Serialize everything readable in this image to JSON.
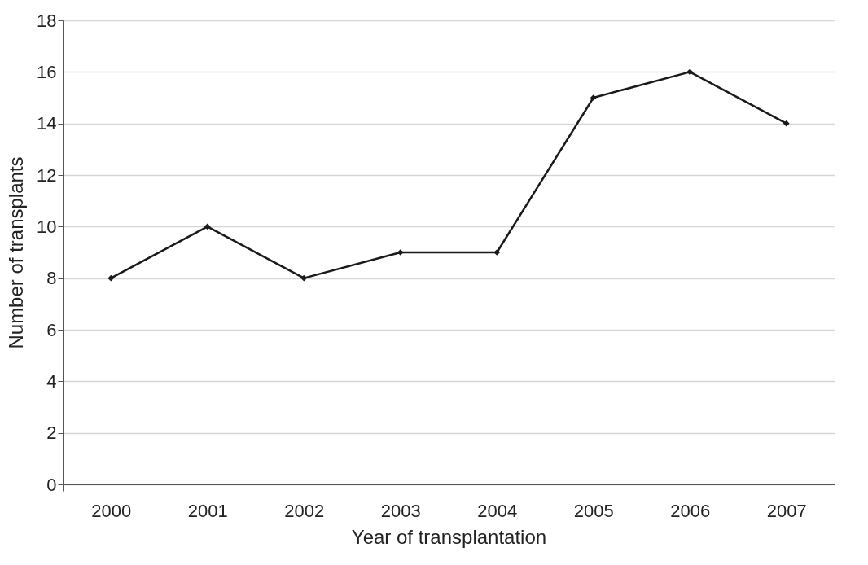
{
  "chart_data": {
    "type": "line",
    "xlabel": "Year of transplantation",
    "ylabel": "Number of transplants",
    "categories": [
      "2000",
      "2001",
      "2002",
      "2003",
      "2004",
      "2005",
      "2006",
      "2007"
    ],
    "series": [
      {
        "color": "#1a1a1a",
        "values": [
          8,
          10,
          8,
          9,
          9,
          15,
          16,
          14
        ]
      }
    ],
    "ylim": [
      0,
      18
    ],
    "yticks": [
      0,
      2,
      4,
      6,
      8,
      10,
      12,
      14,
      16,
      18
    ],
    "grid": "y",
    "marker": "diamond",
    "line_style": "solid"
  }
}
